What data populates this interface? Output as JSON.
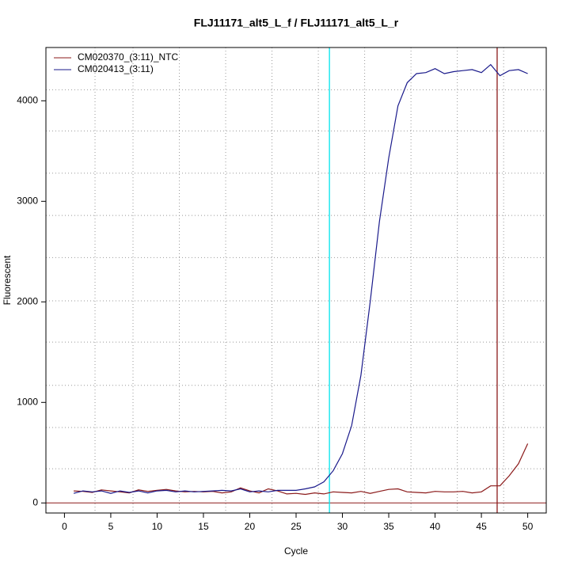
{
  "chart_data": {
    "type": "line",
    "title": "FLJ11171_alt5_L_f / FLJ11171_alt5_L_r",
    "xlabel": "Cycle",
    "ylabel": "Fluorescent",
    "x": [
      1,
      2,
      3,
      4,
      5,
      6,
      7,
      8,
      9,
      10,
      11,
      12,
      13,
      14,
      15,
      16,
      17,
      18,
      19,
      20,
      21,
      22,
      23,
      24,
      25,
      26,
      27,
      28,
      29,
      30,
      31,
      32,
      33,
      34,
      35,
      36,
      37,
      38,
      39,
      40,
      41,
      42,
      43,
      44,
      45,
      46,
      47,
      48,
      49,
      50
    ],
    "series": [
      {
        "name": "CM020370_(3:11)_NTC",
        "color": "#8b1a1a",
        "values": [
          120,
          115,
          105,
          130,
          120,
          110,
          100,
          130,
          115,
          125,
          135,
          120,
          110,
          115,
          110,
          115,
          100,
          110,
          150,
          120,
          100,
          140,
          120,
          90,
          95,
          85,
          100,
          90,
          110,
          105,
          100,
          115,
          95,
          115,
          135,
          140,
          110,
          105,
          100,
          115,
          110,
          110,
          115,
          100,
          110,
          170,
          170,
          270,
          390,
          590
        ]
      },
      {
        "name": "CM020413_(3:11)",
        "color": "#1a1a8b",
        "values": [
          95,
          120,
          110,
          120,
          95,
          120,
          105,
          120,
          100,
          120,
          125,
          110,
          120,
          110,
          115,
          120,
          125,
          120,
          140,
          110,
          120,
          110,
          125,
          125,
          125,
          140,
          160,
          210,
          320,
          490,
          770,
          1270,
          2000,
          2800,
          3430,
          3950,
          4180,
          4270,
          4280,
          4320,
          4270,
          4290,
          4300,
          4310,
          4280,
          4360,
          4250,
          4300,
          4310,
          4270
        ]
      }
    ],
    "xlim": [
      -2,
      52
    ],
    "ylim": [
      -100,
      4530
    ],
    "xticks": [
      0,
      5,
      10,
      15,
      20,
      25,
      30,
      35,
      40,
      45,
      50
    ],
    "yticks": [
      0,
      1000,
      2000,
      3000,
      4000
    ],
    "xgrid": [
      3.3,
      7.4,
      12.4,
      17.4,
      22.4,
      27.4,
      32.4,
      37.4,
      42.4,
      47.4
    ],
    "ygrid": [
      340,
      750,
      1170,
      1600,
      2010,
      2440,
      2860,
      3280,
      3700,
      4110
    ],
    "vlines": [
      {
        "x": 28.6,
        "color": "#00e5ee"
      },
      {
        "x": 46.7,
        "color": "#8b1a1a"
      }
    ],
    "hline": {
      "y": 0,
      "color": "#8b1a1a"
    },
    "legend": "top-left"
  }
}
